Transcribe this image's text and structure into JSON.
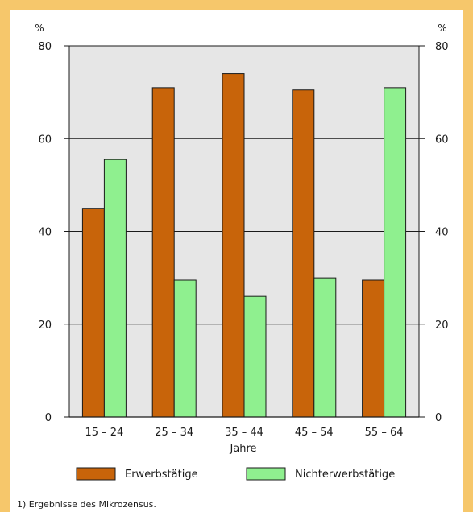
{
  "chart_data": {
    "type": "bar",
    "title": "",
    "xlabel": "Jahre",
    "ylabel_left": "%",
    "ylabel_right": "%",
    "ylim": [
      0,
      80
    ],
    "yticks": [
      0,
      20,
      40,
      60,
      80
    ],
    "categories": [
      "15 – 24",
      "25 – 34",
      "35 – 44",
      "45 – 54",
      "55 – 64"
    ],
    "series": [
      {
        "name": "Erwerbstätige",
        "color": "#c8640a",
        "values": [
          45,
          71,
          74,
          70.5,
          29.5
        ]
      },
      {
        "name": "Nichterwerbstätige",
        "color": "#8ff08f",
        "values": [
          55.5,
          29.5,
          26,
          30,
          71
        ]
      }
    ],
    "grid": true,
    "legend_position": "bottom"
  },
  "footnote": "1) Ergebnisse des Mikrozensus.",
  "colors": {
    "frame": "#f6c76b",
    "plot_bg": "#e6e6e6"
  }
}
